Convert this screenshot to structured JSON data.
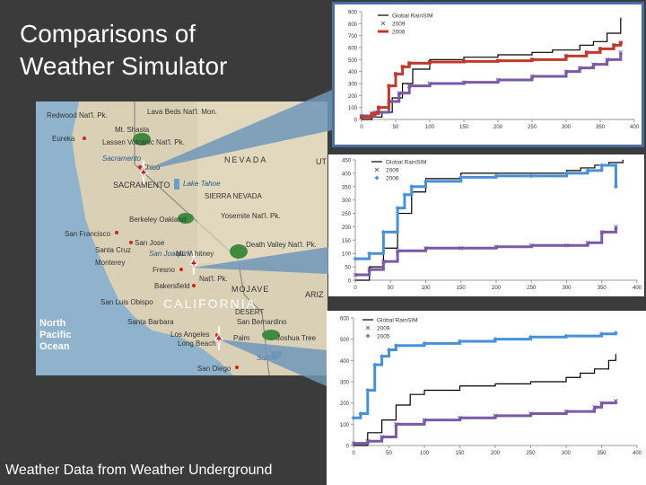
{
  "slide": {
    "title_line1": "Comparisons of",
    "title_line2": "Weather Simulator",
    "caption": "Weather Data from Weather Underground"
  },
  "map": {
    "labels": {
      "redwood": "Redwood Nat'l. Pk.",
      "lava_beds": "Lava Beds Nat'l. Mon.",
      "mt_shasta": "Mt. Shasta",
      "eureka": "Eureka",
      "lassen": "Lassen Volcanic Nat'l. Pk.",
      "sacramento_river": "Sacramento",
      "chico": "Chico",
      "nevada": "NEVADA",
      "ut": "UT",
      "sacramento": "SACRAMENTO",
      "lake_tahoe": "Lake Tahoe",
      "sierra_nevada": "SIERRA NEVADA",
      "berkeley_oakland": "Berkeley Oakland",
      "yosemite": "Yosemite Nat'l. Pk.",
      "san_francisco": "San Francisco",
      "san_jose": "San Jose",
      "santa_cruz": "Santa Cruz",
      "monterey": "Monterey",
      "san_joaquin": "San Joaquin",
      "mt_whitney": "Mt. Whitney",
      "death_valley": "Death Valley Nat'l. Pk.",
      "fresno": "Fresno",
      "kings": "Nat'l. Pk.",
      "bakersfield": "Bakersfield",
      "mojave": "MOJAVE",
      "desert": "DESERT",
      "san_luis_obispo": "San Luis Obispo",
      "california": "CALIFORNIA",
      "ariz": "ARIZ",
      "santa_barbara": "Santa Barbara",
      "san_bernardino": "San Bernardino",
      "los_angeles": "Los Angeles",
      "long_beach": "Long Beach",
      "palm": "Palm",
      "joshua_tree": "Joshua Tree",
      "salton": "Salton",
      "san_diego": "San Diego",
      "ocean_line1": "North",
      "ocean_line2": "Pacific",
      "ocean_line3": "Ocean"
    },
    "colors": {
      "ocean": "#8fb3cc",
      "land": "#d9d0b5",
      "park": "#3e8a3e",
      "city": "#cc2222",
      "marker": "#cc2222"
    }
  },
  "chart_data": [
    {
      "type": "line",
      "xlim": [
        0,
        400
      ],
      "ylim": [
        0,
        900
      ],
      "x_ticks": [
        0,
        50,
        100,
        150,
        200,
        250,
        300,
        350,
        400
      ],
      "y_ticks": [
        0,
        100,
        200,
        300,
        400,
        500,
        600,
        700,
        800,
        900
      ],
      "x_tick_labels": [
        "0",
        "50",
        "100",
        "150",
        "200",
        "250",
        "300",
        "350",
        "400"
      ],
      "y_tick_labels": [
        "0",
        "100",
        "200",
        "300",
        "400",
        "500",
        "600",
        "700",
        "800",
        "900"
      ],
      "legend_position": "top-right",
      "series": [
        {
          "name": "Global RainSIM",
          "color": "#000000",
          "marker": "none",
          "x": [
            0,
            15,
            30,
            45,
            60,
            75,
            100,
            150,
            200,
            250,
            280,
            320,
            340,
            360,
            380
          ],
          "values": [
            0,
            20,
            60,
            180,
            300,
            420,
            500,
            520,
            540,
            560,
            580,
            620,
            650,
            720,
            850
          ]
        },
        {
          "name": "2009",
          "color": "#7a5aa8",
          "marker": "x",
          "x": [
            0,
            20,
            40,
            55,
            70,
            100,
            150,
            200,
            250,
            300,
            320,
            340,
            360,
            380
          ],
          "values": [
            30,
            60,
            150,
            220,
            280,
            300,
            310,
            330,
            360,
            400,
            430,
            460,
            500,
            560
          ]
        },
        {
          "name": "2008",
          "color": "#c0392b",
          "marker": "square",
          "x": [
            0,
            15,
            25,
            40,
            50,
            60,
            70,
            100,
            150,
            200,
            250,
            300,
            330,
            350,
            370,
            380
          ],
          "values": [
            20,
            50,
            100,
            280,
            380,
            440,
            470,
            480,
            485,
            490,
            500,
            530,
            560,
            590,
            620,
            640
          ]
        }
      ]
    },
    {
      "type": "line",
      "xlim": [
        0,
        400
      ],
      "ylim": [
        0,
        450
      ],
      "x_ticks": [
        0,
        50,
        100,
        150,
        200,
        250,
        300,
        350,
        400
      ],
      "y_ticks": [
        0,
        50,
        100,
        150,
        200,
        250,
        300,
        350,
        400,
        450
      ],
      "x_tick_labels": [
        "0",
        "50",
        "100",
        "150",
        "200",
        "250",
        "300",
        "350",
        "400"
      ],
      "y_tick_labels": [
        "0",
        "50",
        "100",
        "150",
        "200",
        "250",
        "300",
        "350",
        "400",
        "450"
      ],
      "legend_position": "top-right",
      "series": [
        {
          "name": "Global RainSIM",
          "color": "#000000",
          "marker": "none",
          "x": [
            0,
            20,
            40,
            60,
            80,
            100,
            150,
            200,
            250,
            300,
            320,
            340,
            360,
            380
          ],
          "values": [
            0,
            50,
            120,
            250,
            330,
            380,
            400,
            400,
            400,
            410,
            420,
            430,
            440,
            450
          ]
        },
        {
          "name": "2009",
          "color": "#7a5aa8",
          "marker": "x",
          "x": [
            0,
            20,
            40,
            60,
            100,
            150,
            200,
            250,
            300,
            330,
            350,
            370
          ],
          "values": [
            20,
            40,
            70,
            110,
            120,
            120,
            125,
            130,
            130,
            140,
            180,
            200
          ]
        },
        {
          "name": "2006",
          "color": "#4a90d9",
          "marker": "diamond",
          "x": [
            0,
            20,
            40,
            60,
            70,
            80,
            100,
            150,
            200,
            250,
            300,
            330,
            350,
            370
          ],
          "values": [
            80,
            100,
            180,
            270,
            320,
            350,
            370,
            385,
            390,
            390,
            400,
            410,
            430,
            350
          ]
        }
      ]
    },
    {
      "type": "line",
      "xlim": [
        0,
        400
      ],
      "ylim": [
        0,
        600
      ],
      "x_ticks": [
        0,
        50,
        100,
        150,
        200,
        250,
        300,
        350,
        400
      ],
      "y_ticks": [
        0,
        100,
        200,
        300,
        400,
        500,
        600
      ],
      "x_tick_labels": [
        "0",
        "50",
        "100",
        "150",
        "200",
        "250",
        "300",
        "350",
        "400"
      ],
      "y_tick_labels": [
        "0",
        "100",
        "200",
        "300",
        "400",
        "500",
        "600"
      ],
      "legend_position": "top-left",
      "series": [
        {
          "name": "Global RainSIM",
          "color": "#000000",
          "marker": "none",
          "x": [
            0,
            20,
            40,
            60,
            80,
            100,
            150,
            200,
            250,
            300,
            320,
            340,
            360,
            370
          ],
          "values": [
            0,
            60,
            120,
            190,
            240,
            260,
            280,
            290,
            300,
            320,
            340,
            360,
            400,
            430
          ]
        },
        {
          "name": "2009",
          "color": "#7a5aa8",
          "marker": "x",
          "x": [
            0,
            20,
            40,
            60,
            100,
            150,
            200,
            250,
            300,
            340,
            350,
            370
          ],
          "values": [
            10,
            20,
            40,
            100,
            120,
            130,
            140,
            150,
            160,
            180,
            200,
            210
          ]
        },
        {
          "name": "2005",
          "color": "#4a90d9",
          "marker": "diamond",
          "x": [
            0,
            10,
            20,
            30,
            40,
            50,
            60,
            100,
            150,
            200,
            250,
            300,
            350,
            370
          ],
          "values": [
            130,
            150,
            260,
            380,
            420,
            450,
            470,
            480,
            490,
            500,
            510,
            515,
            525,
            530
          ]
        }
      ]
    }
  ]
}
